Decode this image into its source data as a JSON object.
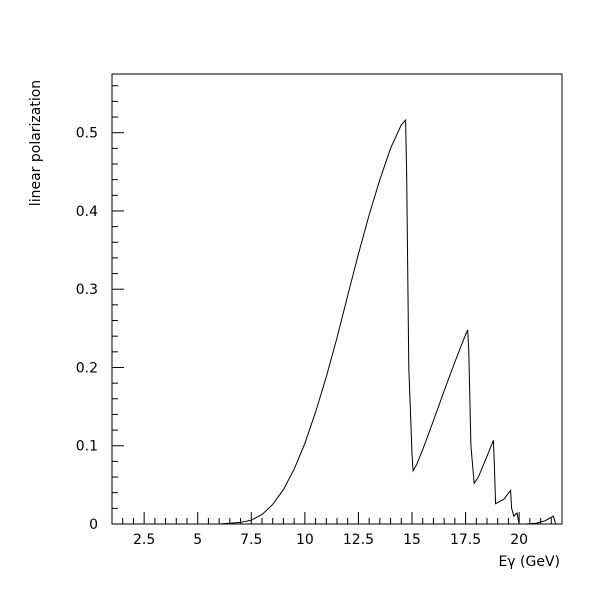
{
  "chart_data": {
    "type": "line",
    "title": "",
    "xlabel": "Eγ (GeV)",
    "ylabel": "linear polarization",
    "xlim": [
      1.0,
      22.0
    ],
    "ylim": [
      0.0,
      0.575
    ],
    "grid": false,
    "x_ticks": [
      2.5,
      5,
      7.5,
      10,
      12.5,
      15,
      17.5,
      20
    ],
    "x_tick_labels": [
      "2.5",
      "5",
      "7.5",
      "10",
      "12.5",
      "15",
      "17.5",
      "20"
    ],
    "y_ticks": [
      0,
      0.1,
      0.2,
      0.3,
      0.4,
      0.5
    ],
    "y_tick_labels": [
      "0",
      "0.1",
      "0.2",
      "0.3",
      "0.4",
      "0.5"
    ],
    "series": [
      {
        "x": [
          1.0,
          6.0,
          6.5,
          7.0,
          7.5,
          8.0,
          8.5,
          9.0,
          9.5,
          10.0,
          10.5,
          11.0,
          11.5,
          12.0,
          12.5,
          13.0,
          13.5,
          14.0,
          14.5,
          14.7,
          14.75,
          14.85,
          15.0,
          15.05,
          15.2,
          15.5,
          16.0,
          16.5,
          17.0,
          17.5,
          17.6,
          17.65,
          17.75,
          17.9,
          18.1,
          18.4,
          18.8,
          18.85,
          18.9,
          19.3,
          19.6,
          19.65,
          19.75,
          19.9,
          20.0,
          20.3,
          20.8,
          21.2,
          21.6,
          21.7,
          22.0
        ],
        "y": [
          0.0,
          0.0,
          0.001,
          0.002,
          0.005,
          0.012,
          0.025,
          0.044,
          0.07,
          0.103,
          0.143,
          0.188,
          0.238,
          0.292,
          0.345,
          0.395,
          0.44,
          0.48,
          0.51,
          0.516,
          0.45,
          0.2,
          0.09,
          0.068,
          0.075,
          0.095,
          0.132,
          0.17,
          0.207,
          0.242,
          0.248,
          0.22,
          0.1,
          0.052,
          0.06,
          0.08,
          0.107,
          0.07,
          0.026,
          0.032,
          0.043,
          0.02,
          0.01,
          0.014,
          0.0,
          0.0,
          0.001,
          0.004,
          0.01,
          0.0,
          0.0
        ]
      }
    ]
  }
}
